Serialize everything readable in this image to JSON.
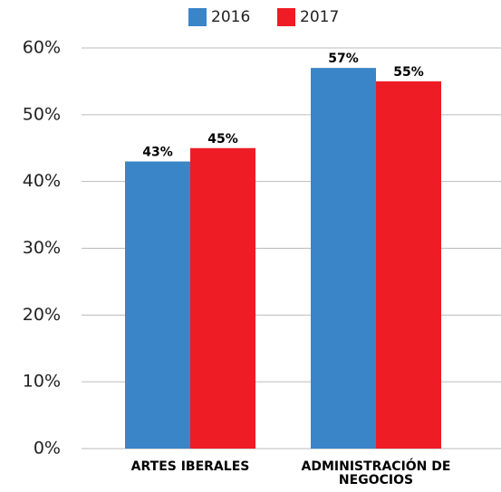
{
  "chart_data": {
    "type": "bar",
    "categories": [
      "ARTES IBERALES",
      "ADMINISTRACIÓN DE NEGOCIOS"
    ],
    "series": [
      {
        "name": "2016",
        "color": "#3a84c8",
        "values": [
          43,
          57
        ],
        "value_labels": [
          "43%",
          "57%"
        ]
      },
      {
        "name": "2017",
        "color": "#ee1c25",
        "values": [
          45,
          55
        ],
        "value_labels": [
          "45%",
          "55%"
        ]
      }
    ],
    "ylim": [
      0,
      60
    ],
    "yticks": [
      {
        "value": 0,
        "label": "0%"
      },
      {
        "value": 10,
        "label": "10%"
      },
      {
        "value": 20,
        "label": "20%"
      },
      {
        "value": 30,
        "label": "30%"
      },
      {
        "value": 40,
        "label": "40%"
      },
      {
        "value": 50,
        "label": "50%"
      },
      {
        "value": 60,
        "label": "60%"
      }
    ],
    "grid": true,
    "legend": "top"
  }
}
